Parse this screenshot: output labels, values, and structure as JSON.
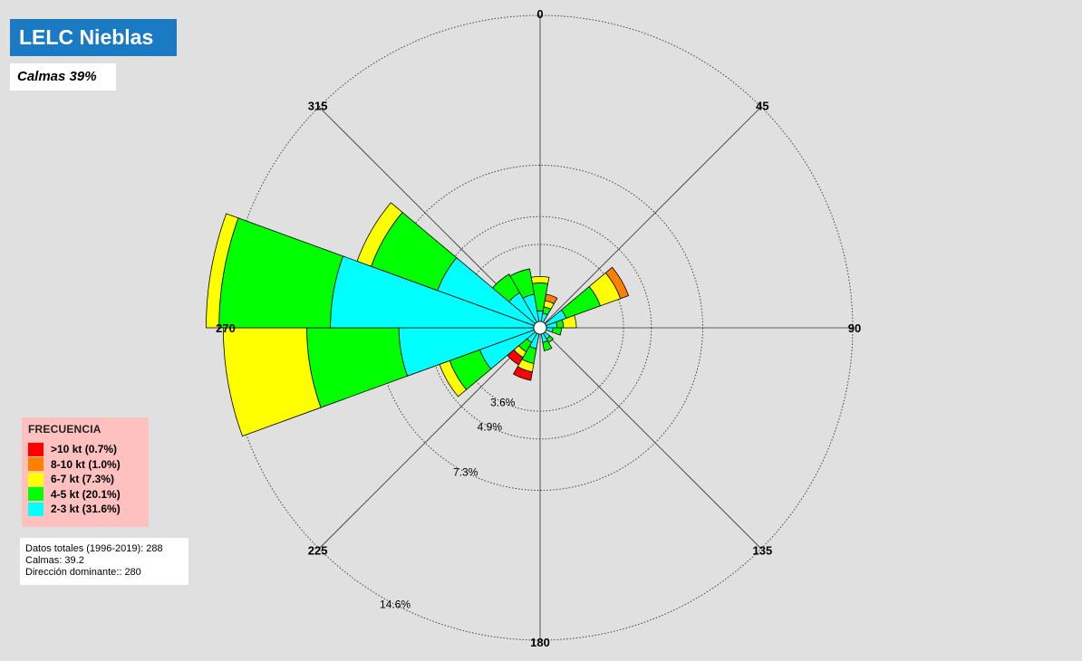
{
  "title": "LELC Nieblas",
  "calmas_label": "Calmas 39%",
  "legend": {
    "title": "FRECUENCIA",
    "items": [
      {
        "label": ">10 kt (0.7%)",
        "color": "#ff0000"
      },
      {
        "label": "8-10 kt (1.0%)",
        "color": "#ff8000"
      },
      {
        "label": "6-7 kt (7.3%)",
        "color": "#ffff00"
      },
      {
        "label": "4-5 kt (20.1%)",
        "color": "#00ff00"
      },
      {
        "label": "2-3 kt (31.6%)",
        "color": "#00ffff"
      }
    ]
  },
  "stats": {
    "line1": "Datos totales (1996-2019):  288",
    "line2": "Calmas:  39.2",
    "line3": "Dirección dominante::  280"
  },
  "chart_data": {
    "type": "polar-stacked-bar",
    "direction_labels": [
      "0",
      "45",
      "90",
      "135",
      "180",
      "225",
      "270",
      "315"
    ],
    "ring_labels": [
      "3.6%",
      "4.9%",
      "7.3%",
      "14.6%"
    ],
    "ring_values": [
      3.6,
      4.9,
      7.3,
      14.6
    ],
    "outer_ring_value": 14.6,
    "bin_width_deg": 20,
    "bin_colors": [
      "#00ffff",
      "#00ff00",
      "#ffff00",
      "#ff8000",
      "#ff0000"
    ],
    "bins": [
      "2-3 kt",
      "4-5 kt",
      "6-7 kt",
      "8-10 kt",
      ">10 kt"
    ],
    "sectors": [
      {
        "dir": 0,
        "values": [
          0.5,
          1.3,
          0.3,
          0,
          0
        ]
      },
      {
        "dir": 20,
        "values": [
          0.4,
          0.3,
          0.3,
          0.3,
          0
        ]
      },
      {
        "dir": 60,
        "values": [
          1.0,
          1.7,
          1.0,
          0.4,
          0
        ]
      },
      {
        "dir": 80,
        "values": [
          0.5,
          0.3,
          0.6,
          0,
          0
        ]
      },
      {
        "dir": 100,
        "values": [
          0.3,
          0.4,
          0,
          0,
          0
        ]
      },
      {
        "dir": 140,
        "values": [
          0.3,
          0.2,
          0,
          0,
          0
        ]
      },
      {
        "dir": 160,
        "values": [
          0.4,
          0.4,
          0,
          0,
          0
        ]
      },
      {
        "dir": 200,
        "values": [
          0.7,
          0.7,
          0.4,
          0,
          0.4
        ]
      },
      {
        "dir": 220,
        "values": [
          0.5,
          0.5,
          0.3,
          0,
          0.4
        ]
      },
      {
        "dir": 240,
        "values": [
          2.7,
          1.5,
          0.5,
          0,
          0
        ]
      },
      {
        "dir": 260,
        "values": [
          6.3,
          4.3,
          3.9,
          0,
          0
        ]
      },
      {
        "dir": 280,
        "values": [
          9.5,
          5.2,
          0.6,
          0,
          0
        ]
      },
      {
        "dir": 300,
        "values": [
          4.8,
          3.3,
          0.7,
          0,
          0
        ]
      },
      {
        "dir": 320,
        "values": [
          1.6,
          1.0,
          0,
          0,
          0
        ]
      },
      {
        "dir": 340,
        "values": [
          1.3,
          1.2,
          0,
          0,
          0
        ]
      }
    ]
  }
}
